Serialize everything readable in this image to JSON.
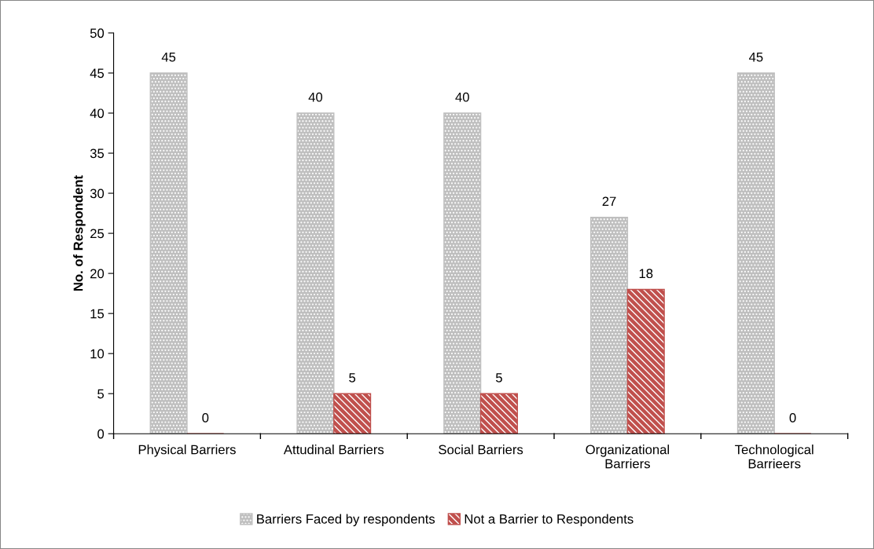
{
  "chart_data": {
    "type": "bar",
    "ylabel": "No. of Respondent",
    "categories": [
      "Physical Barriers",
      "Attudinal Barriers",
      "Social Barriers",
      "Organizational Barriers",
      "Technological Barrieers"
    ],
    "series": [
      {
        "name": "Barriers Faced by respondents",
        "color": "#bfbfbf",
        "values": [
          45,
          40,
          40,
          27,
          45
        ]
      },
      {
        "name": "Not a Barrier to Respondents",
        "color": "#c0504d",
        "values": [
          0,
          5,
          5,
          18,
          0
        ]
      }
    ],
    "ylim": [
      0,
      50
    ],
    "yticks": [
      0,
      5,
      10,
      15,
      20,
      25,
      30,
      35,
      40,
      45,
      50
    ],
    "data_labels": true,
    "grid": false,
    "legend": "bottom"
  }
}
